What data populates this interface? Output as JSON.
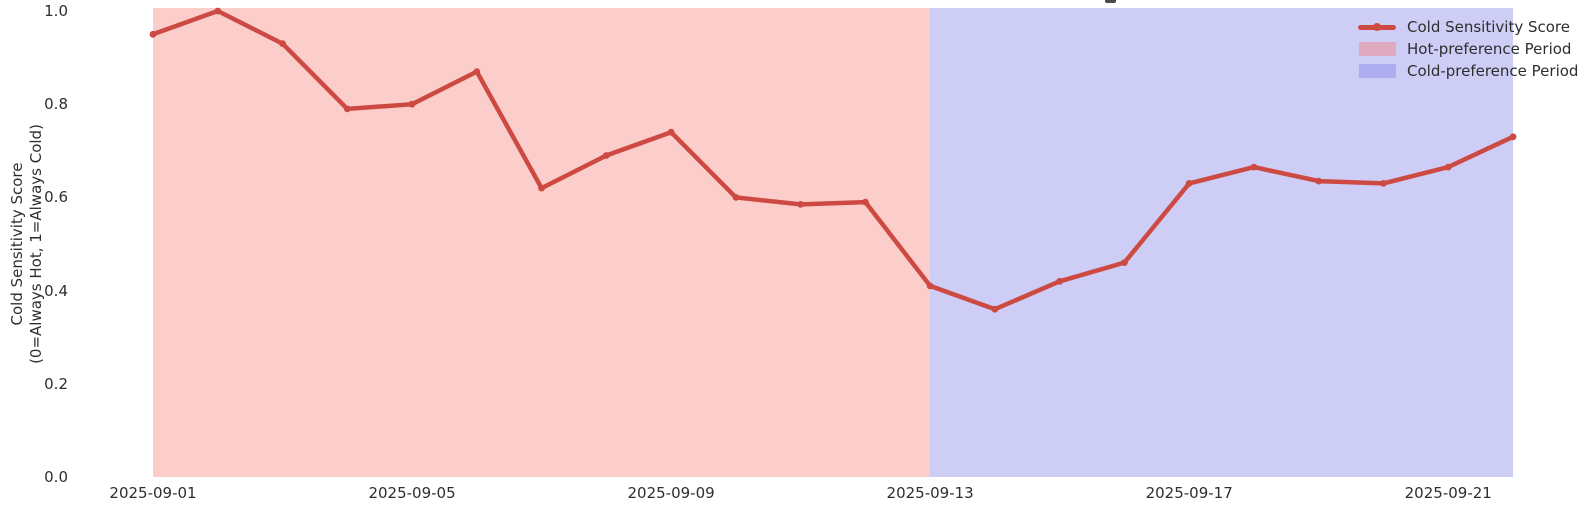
{
  "figure": {
    "y_axis_label_line1": "Cold Sensitivity Score",
    "y_axis_label_line2": "(0=Always Hot, 1=Always Cold)"
  },
  "legend": {
    "items": [
      {
        "label": "Cold Sensitivity Score",
        "swatch": "line"
      },
      {
        "label": "Hot-preference Period",
        "swatch": "patch",
        "color_key": "legend_hot_patch"
      },
      {
        "label": "Cold-preference Period",
        "swatch": "patch",
        "color_key": "legend_cold_patch"
      }
    ]
  },
  "colors": {
    "line": "#cd4a43",
    "hot_span": "#fbcecb",
    "cold_span": "#cecdf6",
    "legend_hot_patch": "#e0a9c0",
    "legend_cold_patch": "#aeadf0",
    "text": "#2e2e2e"
  },
  "chart_data": {
    "type": "line",
    "title": "",
    "x": [
      "2025-09-01",
      "2025-09-02",
      "2025-09-03",
      "2025-09-04",
      "2025-09-05",
      "2025-09-06",
      "2025-09-07",
      "2025-09-08",
      "2025-09-09",
      "2025-09-10",
      "2025-09-11",
      "2025-09-12",
      "2025-09-13",
      "2025-09-14",
      "2025-09-15",
      "2025-09-16",
      "2025-09-17",
      "2025-09-18",
      "2025-09-19",
      "2025-09-20",
      "2025-09-21",
      "2025-09-22"
    ],
    "series": [
      {
        "name": "Cold Sensitivity Score",
        "values": [
          0.95,
          1.0,
          0.93,
          0.79,
          0.8,
          0.87,
          0.62,
          0.69,
          0.74,
          0.6,
          0.585,
          0.59,
          0.41,
          0.36,
          0.42,
          0.46,
          0.63,
          0.665,
          0.635,
          0.63,
          0.665,
          0.73
        ]
      }
    ],
    "xlabel": "",
    "ylabel": "Cold Sensitivity Score\n(0=Always Hot, 1=Always Cold)",
    "ylim": [
      0.0,
      1.0
    ],
    "y_ticks": [
      {
        "value": 0.0,
        "label": "0.0"
      },
      {
        "value": 0.2,
        "label": "0.2"
      },
      {
        "value": 0.4,
        "label": "0.4"
      },
      {
        "value": 0.6,
        "label": "0.6"
      },
      {
        "value": 0.8,
        "label": "0.8"
      },
      {
        "value": 1.0,
        "label": "1.0"
      }
    ],
    "x_ticks": [
      {
        "day_index": 0,
        "label": "2025-09-01"
      },
      {
        "day_index": 4,
        "label": "2025-09-05"
      },
      {
        "day_index": 8,
        "label": "2025-09-09"
      },
      {
        "day_index": 12,
        "label": "2025-09-13"
      },
      {
        "day_index": 16,
        "label": "2025-09-17"
      },
      {
        "day_index": 20,
        "label": "2025-09-21"
      }
    ],
    "grid": false,
    "legend_position": "upper right",
    "regions": [
      {
        "label": "Hot-preference Period",
        "from": "2025-09-01",
        "to": "2025-09-13",
        "color_key": "hot_span"
      },
      {
        "label": "Cold-preference Period",
        "from": "2025-09-13",
        "to": "2025-09-22",
        "color_key": "cold_span"
      }
    ]
  }
}
